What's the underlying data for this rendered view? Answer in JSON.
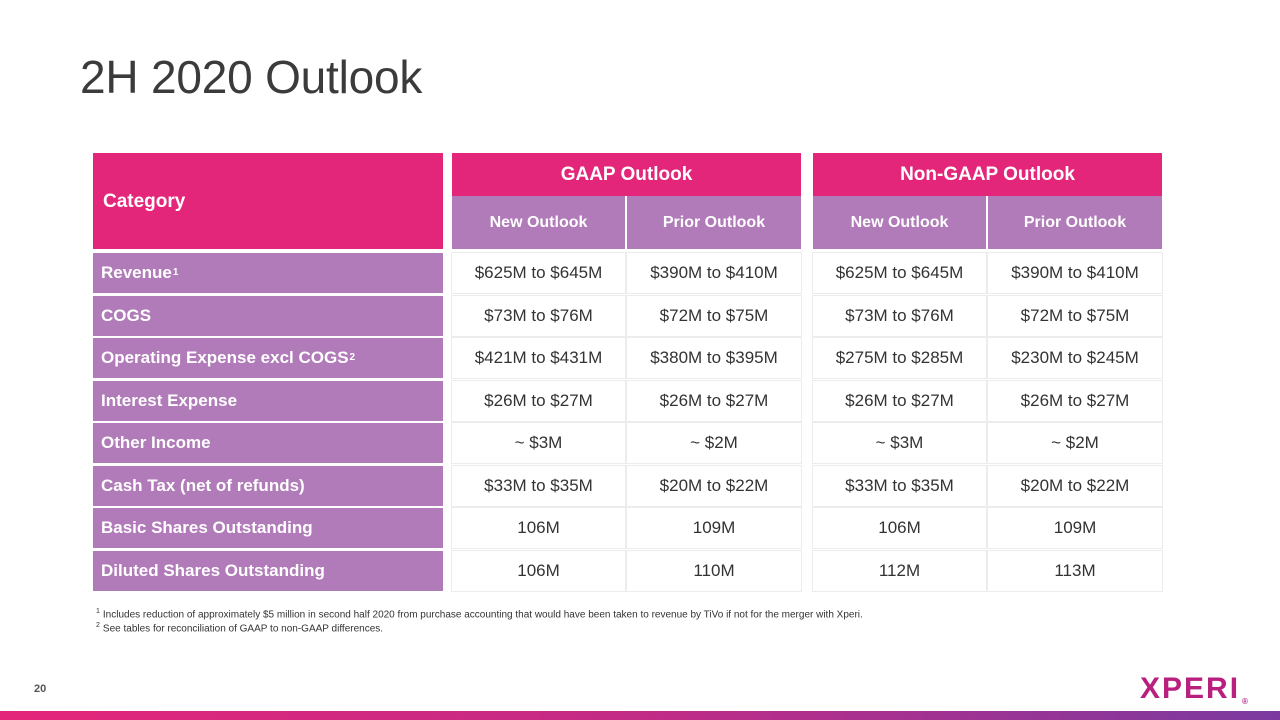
{
  "title": "2H 2020 Outlook",
  "table": {
    "category_header": "Category",
    "groups": [
      "GAAP Outlook",
      "Non-GAAP Outlook"
    ],
    "subheaders": [
      "New Outlook",
      "Prior Outlook",
      "New Outlook",
      "Prior Outlook"
    ],
    "rows": [
      {
        "label": "Revenue",
        "sup": "1",
        "values": [
          "$625M to $645M",
          "$390M to $410M",
          "$625M to $645M",
          "$390M to $410M"
        ]
      },
      {
        "label": "COGS",
        "sup": "",
        "values": [
          "$73M to $76M",
          "$72M to $75M",
          "$73M to $76M",
          "$72M to $75M"
        ]
      },
      {
        "label": "Operating Expense excl COGS",
        "sup": "2",
        "values": [
          "$421M to $431M",
          "$380M to $395M",
          "$275M to $285M",
          "$230M to $245M"
        ]
      },
      {
        "label": "Interest Expense",
        "sup": "",
        "values": [
          "$26M to $27M",
          "$26M to $27M",
          "$26M to $27M",
          "$26M to $27M"
        ]
      },
      {
        "label": "Other Income",
        "sup": "",
        "values": [
          "~ $3M",
          "~ $2M",
          "~ $3M",
          "~ $2M"
        ]
      },
      {
        "label": "Cash Tax (net of refunds)",
        "sup": "",
        "values": [
          "$33M to $35M",
          "$20M to $22M",
          "$33M to $35M",
          "$20M to $22M"
        ]
      },
      {
        "label": "Basic Shares Outstanding",
        "sup": "",
        "values": [
          "106M",
          "109M",
          "106M",
          "109M"
        ]
      },
      {
        "label": "Diluted Shares Outstanding",
        "sup": "",
        "values": [
          "106M",
          "110M",
          "112M",
          "113M"
        ]
      }
    ]
  },
  "footnotes": [
    {
      "num": "1",
      "text": "Includes reduction of approximately $5 million in second half 2020 from purchase accounting that would have been taken to revenue by TiVo if not for the merger with Xperi."
    },
    {
      "num": "2",
      "text": "See tables for reconciliation of GAAP to non-GAAP differences."
    }
  ],
  "page_number": "20",
  "logo_text": "XPERI",
  "logo_mark": "®",
  "colors": {
    "pink": "#e4267a",
    "purple": "#b07bb8",
    "logo": "#b81f7e"
  }
}
